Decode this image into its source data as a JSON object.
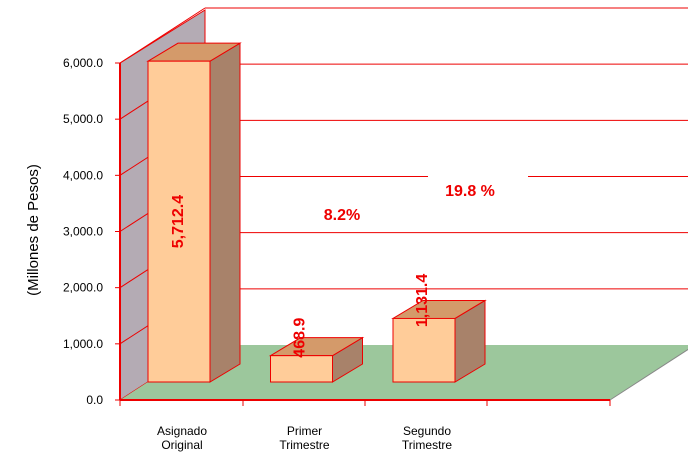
{
  "chart_data": {
    "type": "bar3d",
    "y_label": "(Millones de Pesos)",
    "categories": [
      "Asignado Original",
      "Primer Trimestre",
      "Segundo Trimestre"
    ],
    "values": [
      5712.4,
      468.9,
      1131.4
    ],
    "value_labels": [
      "5,712.4",
      "468.9",
      "1,131.4"
    ],
    "annotations": [
      "8.2%",
      "19.8 %"
    ],
    "color": "#ffcc99",
    "ylim": [
      0,
      6000
    ],
    "yticks": [
      {
        "value": 0,
        "label": "0.0"
      },
      {
        "value": 1000,
        "label": "1,000.0"
      },
      {
        "value": 2000,
        "label": "2,000.0"
      },
      {
        "value": 3000,
        "label": "3,000.0"
      },
      {
        "value": 4000,
        "label": "4,000.0"
      },
      {
        "value": 5000,
        "label": "5,000.0"
      },
      {
        "value": 6000,
        "label": "6,000.0"
      }
    ],
    "grid": true
  }
}
